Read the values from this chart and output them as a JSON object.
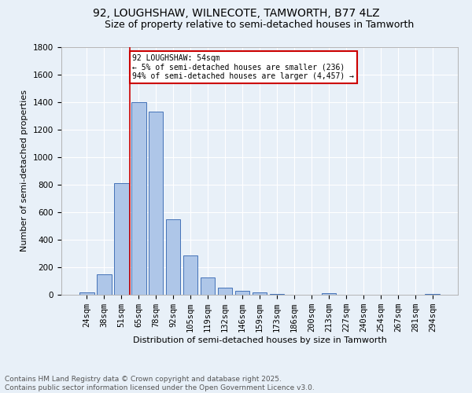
{
  "title": "92, LOUGHSHAW, WILNECOTE, TAMWORTH, B77 4LZ",
  "subtitle": "Size of property relative to semi-detached houses in Tamworth",
  "xlabel": "Distribution of semi-detached houses by size in Tamworth",
  "ylabel": "Number of semi-detached properties",
  "categories": [
    "24sqm",
    "38sqm",
    "51sqm",
    "65sqm",
    "78sqm",
    "92sqm",
    "105sqm",
    "119sqm",
    "132sqm",
    "146sqm",
    "159sqm",
    "173sqm",
    "186sqm",
    "200sqm",
    "213sqm",
    "227sqm",
    "240sqm",
    "254sqm",
    "267sqm",
    "281sqm",
    "294sqm"
  ],
  "values": [
    15,
    150,
    810,
    1400,
    1330,
    550,
    285,
    125,
    50,
    30,
    20,
    5,
    0,
    0,
    10,
    0,
    0,
    0,
    0,
    0,
    5
  ],
  "bar_color": "#aec6e8",
  "bar_edge_color": "#4472b8",
  "vline_x_index": 2,
  "vline_color": "#cc0000",
  "annotation_text": "92 LOUGHSHAW: 54sqm\n← 5% of semi-detached houses are smaller (236)\n94% of semi-detached houses are larger (4,457) →",
  "annotation_box_color": "#ffffff",
  "annotation_box_edge": "#cc0000",
  "footer": "Contains HM Land Registry data © Crown copyright and database right 2025.\nContains public sector information licensed under the Open Government Licence v3.0.",
  "ylim": [
    0,
    1800
  ],
  "background_color": "#e8f0f8",
  "grid_color": "#ffffff",
  "title_fontsize": 10,
  "subtitle_fontsize": 9,
  "label_fontsize": 8,
  "tick_fontsize": 7.5,
  "footer_fontsize": 6.5
}
